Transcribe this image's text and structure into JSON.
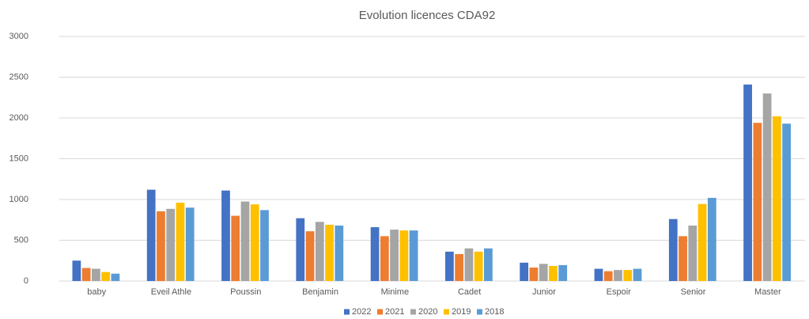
{
  "chart_data": {
    "type": "bar",
    "title": "Evolution licences CDA92",
    "categories": [
      "baby",
      "Eveil Athle",
      "Poussin",
      "Benjamin",
      "Minime",
      "Cadet",
      "Junior",
      "Espoir",
      "Senior",
      "Master"
    ],
    "series": [
      {
        "name": "2022",
        "color": "#4472c4",
        "values": [
          250,
          1120,
          1110,
          770,
          660,
          360,
          225,
          150,
          760,
          2410
        ]
      },
      {
        "name": "2021",
        "color": "#ed7d31",
        "values": [
          160,
          855,
          800,
          610,
          550,
          330,
          165,
          120,
          550,
          1940
        ]
      },
      {
        "name": "2020",
        "color": "#a5a5a5",
        "values": [
          150,
          885,
          975,
          725,
          630,
          400,
          210,
          135,
          680,
          2300
        ]
      },
      {
        "name": "2019",
        "color": "#ffc000",
        "values": [
          110,
          960,
          940,
          690,
          620,
          360,
          185,
          135,
          945,
          2020
        ]
      },
      {
        "name": "2018",
        "color": "#5b9bd5",
        "values": [
          90,
          900,
          870,
          680,
          620,
          400,
          195,
          150,
          1020,
          1930
        ]
      }
    ],
    "ylim": [
      0,
      3000
    ],
    "yticks": [
      0,
      500,
      1000,
      1500,
      2000,
      2500,
      3000
    ],
    "grid": true,
    "legend": "bottom"
  }
}
